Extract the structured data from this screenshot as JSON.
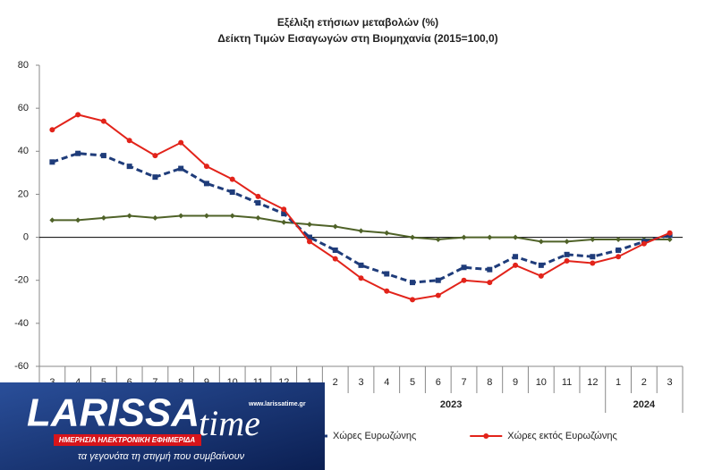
{
  "chart_data": {
    "type": "line",
    "title": "Εξέλιξη ετήσιων μεταβολών (%)",
    "subtitle": "Δείκτη Τιμών Εισαγωγών στη Βιομηχανία (2015=100,0)",
    "categories": [
      "3",
      "4",
      "5",
      "6",
      "7",
      "8",
      "9",
      "10",
      "11",
      "12",
      "1",
      "2",
      "3",
      "4",
      "5",
      "6",
      "7",
      "8",
      "9",
      "10",
      "11",
      "12",
      "1",
      "2",
      "3"
    ],
    "groups": [
      {
        "label": "2023",
        "span": [
          10,
          21
        ]
      },
      {
        "label": "2024",
        "span": [
          22,
          24
        ]
      }
    ],
    "ylim": [
      -60,
      80
    ],
    "yticks": [
      -60,
      -40,
      -20,
      0,
      20,
      40,
      60,
      80
    ],
    "series": [
      {
        "color": "#4f6228",
        "marker": "diamond",
        "dash": false,
        "values": [
          8,
          8,
          9,
          10,
          9,
          10,
          10,
          10,
          9,
          7,
          6,
          5,
          3,
          2,
          0,
          -1,
          0,
          0,
          0,
          -2,
          -2,
          -1,
          -1,
          -1,
          -1
        ]
      },
      {
        "name": "Χώρες Ευρωζώνης",
        "color": "#1f3c7a",
        "marker": "square",
        "dash": true,
        "values": [
          35,
          39,
          38,
          33,
          28,
          32,
          25,
          21,
          16,
          11,
          0,
          -6,
          -13,
          -17,
          -21,
          -20,
          -14,
          -15,
          -9,
          -13,
          -8,
          -9,
          -6,
          -2,
          1
        ]
      },
      {
        "name": "Χώρες εκτός Ευρωζώνης",
        "color": "#e2231a",
        "marker": "circle",
        "dash": false,
        "values": [
          50,
          57,
          54,
          45,
          38,
          44,
          33,
          27,
          19,
          13,
          -2,
          -10,
          -19,
          -25,
          -29,
          -27,
          -20,
          -21,
          -13,
          -18,
          -11,
          -12,
          -9,
          -3,
          2
        ]
      }
    ]
  },
  "watermark": {
    "brand": "LARISSA",
    "brand2": "time",
    "url": "www.larissatime.gr",
    "tagline": "ΗΜΕΡΗΣΙΑ ΗΛΕΚΤΡΟΝΙΚΗ ΕΦΗΜΕΡΙΔΑ",
    "slogan": "τα γεγονότα τη στιγμή που συμβαίνουν"
  }
}
